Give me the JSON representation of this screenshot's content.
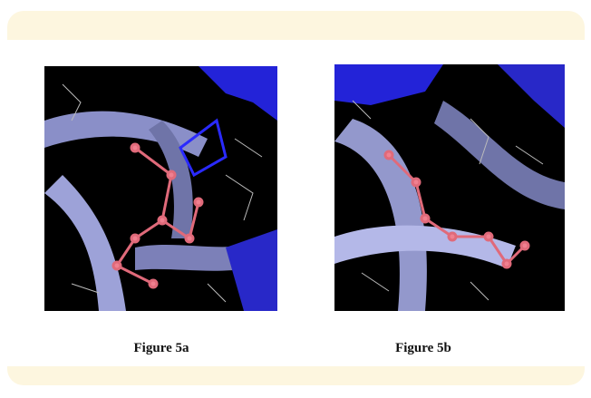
{
  "figures": [
    {
      "caption": "Figure 5a"
    },
    {
      "caption": "Figure 5b"
    }
  ]
}
